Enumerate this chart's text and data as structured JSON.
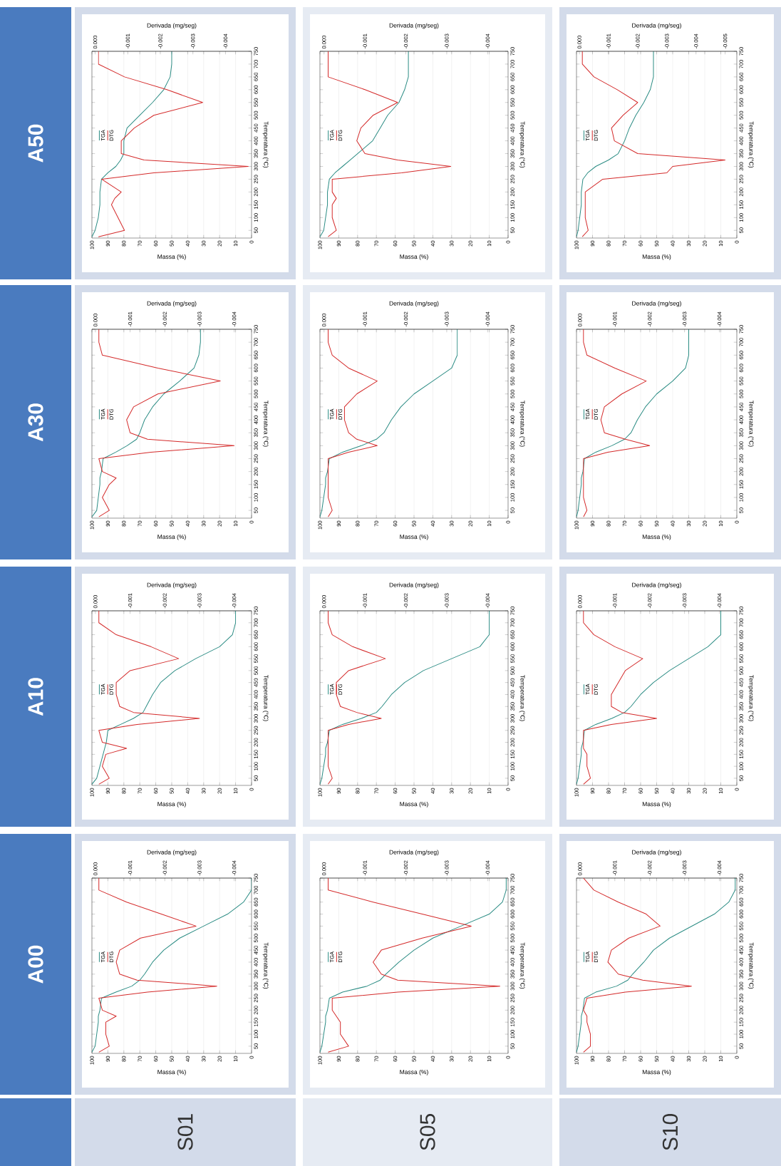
{
  "chart_data": [
    {
      "type": "other",
      "annotations": [
        "A00",
        "A10",
        "A30",
        "A50",
        "S01",
        "S05",
        "S10"
      ]
    },
    {
      "type": "line",
      "xlabel": "Massa (%)",
      "x2label": "Derivada (mg/seg)",
      "ylabel": "Temperatura (°C)",
      "xlim": [
        100,
        0
      ],
      "xticks": [
        0,
        10,
        20,
        30,
        40,
        50,
        60,
        70,
        80,
        90,
        100
      ],
      "x2lim": [
        0.0001,
        -0.0045
      ],
      "x2ticks": [
        {
          "value": 0,
          "label": "0.000"
        },
        {
          "value": -0.001,
          "label": "-0.001"
        },
        {
          "value": -0.002,
          "label": "-0.002"
        },
        {
          "value": -0.003,
          "label": "-0.003"
        },
        {
          "value": -0.004,
          "label": "-0.004"
        }
      ],
      "ylim": [
        20,
        750
      ],
      "yticks": [
        50,
        100,
        150,
        200,
        250,
        300,
        350,
        400,
        450,
        500,
        550,
        600,
        650,
        700,
        750
      ],
      "grid": "x",
      "legend": "left",
      "series": [
        {
          "name": "TGA",
          "color": "#2b8c84",
          "x": [
            100,
            98,
            97,
            96,
            96,
            95,
            94,
            85,
            75,
            70,
            67,
            62,
            55,
            45,
            30,
            15,
            5,
            0,
            0
          ],
          "values": [
            25,
            50,
            100,
            150,
            175,
            200,
            250,
            275,
            300,
            325,
            350,
            400,
            450,
            500,
            550,
            600,
            650,
            700,
            750
          ]
        },
        {
          "name": "DTG",
          "color": "#d42a2a",
          "axis": "x2",
          "x": [
            -0.0001,
            -0.0004,
            -0.0003,
            -0.0003,
            -0.0006,
            -0.0002,
            -0.0001,
            -0.0015,
            -0.0035,
            -0.0012,
            -0.0007,
            -0.0006,
            -0.0007,
            -0.0013,
            -0.0029,
            -0.0019,
            -0.0009,
            -0.0001,
            -0.0001
          ],
          "values": [
            25,
            50,
            100,
            150,
            175,
            200,
            250,
            275,
            300,
            325,
            350,
            400,
            450,
            500,
            550,
            600,
            650,
            700,
            750
          ]
        }
      ]
    },
    {
      "type": "line",
      "xlabel": "Massa (%)",
      "x2label": "Derivada (mg/seg)",
      "ylabel": "Temperatura (°C)",
      "xlim": [
        100,
        0
      ],
      "xticks": [
        0,
        10,
        20,
        30,
        40,
        50,
        60,
        70,
        80,
        90,
        100
      ],
      "x2lim": [
        0.0001,
        -0.0045
      ],
      "x2ticks": [
        {
          "value": 0,
          "label": "0.000"
        },
        {
          "value": -0.001,
          "label": "-0.001"
        },
        {
          "value": -0.002,
          "label": "-0.002"
        },
        {
          "value": -0.003,
          "label": "-0.003"
        },
        {
          "value": -0.004,
          "label": "-0.004"
        }
      ],
      "ylim": [
        20,
        750
      ],
      "yticks": [
        50,
        100,
        150,
        200,
        250,
        300,
        350,
        400,
        450,
        500,
        550,
        600,
        650,
        700,
        750
      ],
      "grid": "x",
      "legend": "left",
      "series": [
        {
          "name": "TGA",
          "color": "#2b8c84",
          "x": [
            100,
            97,
            95,
            93,
            92,
            91,
            90,
            82,
            74,
            68,
            66,
            62,
            57,
            48,
            35,
            20,
            12,
            10,
            10
          ],
          "values": [
            25,
            50,
            100,
            150,
            175,
            200,
            250,
            275,
            300,
            325,
            350,
            400,
            450,
            500,
            550,
            600,
            650,
            700,
            750
          ]
        },
        {
          "name": "DTG",
          "color": "#d42a2a",
          "axis": "x2",
          "x": [
            -0.0001,
            -0.0004,
            -0.0002,
            -0.0003,
            -0.0009,
            -0.0002,
            -0.0001,
            -0.0012,
            -0.003,
            -0.0011,
            -0.0007,
            -0.0006,
            -0.0006,
            -0.001,
            -0.0024,
            -0.0016,
            -0.0006,
            -0.0001,
            -0.0001
          ],
          "values": [
            25,
            50,
            100,
            150,
            175,
            200,
            250,
            275,
            300,
            325,
            350,
            400,
            450,
            500,
            550,
            600,
            650,
            700,
            750
          ]
        }
      ]
    },
    {
      "type": "line",
      "xlabel": "Massa (%)",
      "x2label": "Derivada (mg/seg)",
      "ylabel": "Temperatura (°C)",
      "xlim": [
        100,
        0
      ],
      "xticks": [
        0,
        10,
        20,
        30,
        40,
        50,
        60,
        70,
        80,
        90,
        100
      ],
      "x2lim": [
        0.0001,
        -0.0045
      ],
      "x2ticks": [
        {
          "value": 0,
          "label": "0.000"
        },
        {
          "value": -0.001,
          "label": "-0.001"
        },
        {
          "value": -0.002,
          "label": "-0.002"
        },
        {
          "value": -0.003,
          "label": "-0.003"
        },
        {
          "value": -0.004,
          "label": "-0.004"
        }
      ],
      "ylim": [
        20,
        750
      ],
      "yticks": [
        50,
        100,
        150,
        200,
        250,
        300,
        350,
        400,
        450,
        500,
        550,
        600,
        650,
        700,
        750
      ],
      "grid": "x",
      "legend": "left",
      "series": [
        {
          "name": "TGA",
          "color": "#2b8c84",
          "x": [
            100,
            97,
            96,
            95,
            95,
            94,
            93,
            85,
            78,
            72,
            70,
            67,
            62,
            55,
            45,
            36,
            33,
            32,
            32
          ],
          "values": [
            25,
            50,
            100,
            150,
            175,
            200,
            250,
            275,
            300,
            325,
            350,
            400,
            450,
            500,
            550,
            600,
            650,
            700,
            750
          ]
        },
        {
          "name": "DTG",
          "color": "#d42a2a",
          "axis": "x2",
          "x": [
            -0.0001,
            -0.0004,
            -0.0002,
            -0.0004,
            -0.0006,
            -0.0002,
            -0.0001,
            -0.0016,
            -0.004,
            -0.0015,
            -0.001,
            -0.0009,
            -0.0011,
            -0.0018,
            -0.0036,
            -0.0018,
            -0.0002,
            -0.0001,
            -0.0001
          ],
          "values": [
            25,
            50,
            100,
            150,
            175,
            200,
            250,
            275,
            300,
            325,
            350,
            400,
            450,
            500,
            550,
            600,
            650,
            700,
            750
          ]
        }
      ]
    },
    {
      "type": "line",
      "xlabel": "Massa (%)",
      "x2label": "Derivada (mg/seg)",
      "ylabel": "Temperatura (°C)",
      "xlim": [
        100,
        0
      ],
      "xticks": [
        0,
        10,
        20,
        30,
        40,
        50,
        60,
        70,
        80,
        90,
        100
      ],
      "x2lim": [
        0.0001,
        -0.0048
      ],
      "x2ticks": [
        {
          "value": 0,
          "label": "0.000"
        },
        {
          "value": -0.001,
          "label": "-0.001"
        },
        {
          "value": -0.002,
          "label": "-0.002"
        },
        {
          "value": -0.003,
          "label": "-0.003"
        },
        {
          "value": -0.004,
          "label": "-0.004"
        }
      ],
      "ylim": [
        20,
        750
      ],
      "yticks": [
        50,
        100,
        150,
        200,
        250,
        300,
        350,
        400,
        450,
        500,
        550,
        600,
        650,
        700,
        750
      ],
      "grid": "x",
      "legend": "left",
      "series": [
        {
          "name": "TGA",
          "color": "#2b8c84",
          "x": [
            100,
            98,
            96,
            95,
            95,
            94,
            90,
            85,
            82,
            80,
            80,
            78,
            70,
            62,
            55,
            51,
            50,
            50
          ],
          "values": [
            25,
            50,
            100,
            150,
            200,
            250,
            275,
            300,
            325,
            350,
            400,
            450,
            500,
            550,
            600,
            650,
            700,
            750
          ]
        },
        {
          "name": "DTG",
          "color": "#d42a2a",
          "axis": "x2",
          "x": [
            -0.0001,
            -0.0009,
            -0.0007,
            -0.0005,
            -0.0006,
            -0.0008,
            -0.0002,
            -0.0018,
            -0.0047,
            -0.0015,
            -0.0008,
            -0.0008,
            -0.0012,
            -0.0018,
            -0.0033,
            -0.0022,
            -0.0009,
            -0.0001,
            -0.0001
          ],
          "values": [
            25,
            50,
            100,
            150,
            175,
            200,
            250,
            275,
            300,
            325,
            350,
            400,
            450,
            500,
            550,
            600,
            650,
            700,
            750
          ]
        }
      ]
    },
    {
      "type": "line",
      "xlabel": "Massa (%)",
      "x2label": "Derivada (mg/seg)",
      "ylabel": "Temperatura (°C)",
      "xlim": [
        100,
        0
      ],
      "xticks": [
        0,
        10,
        20,
        30,
        40,
        50,
        60,
        70,
        80,
        90,
        100
      ],
      "x2lim": [
        0.0001,
        -0.0045
      ],
      "x2ticks": [
        {
          "value": 0,
          "label": "0.000"
        },
        {
          "value": -0.001,
          "label": "-0.001"
        },
        {
          "value": -0.002,
          "label": "-0.002"
        },
        {
          "value": -0.003,
          "label": "-0.003"
        },
        {
          "value": -0.004,
          "label": "-0.004"
        }
      ],
      "ylim": [
        20,
        750
      ],
      "yticks": [
        50,
        100,
        150,
        200,
        250,
        300,
        350,
        400,
        450,
        500,
        550,
        600,
        650,
        700,
        750
      ],
      "grid": "x",
      "legend": "left",
      "series": [
        {
          "name": "TGA",
          "color": "#2b8c84",
          "x": [
            100,
            99,
            98,
            97,
            97,
            96,
            95,
            88,
            75,
            68,
            65,
            58,
            50,
            40,
            25,
            10,
            3,
            1,
            1
          ],
          "values": [
            25,
            50,
            100,
            150,
            175,
            200,
            250,
            275,
            300,
            325,
            350,
            400,
            450,
            500,
            550,
            600,
            650,
            700,
            750
          ]
        },
        {
          "name": "DTG",
          "color": "#d42a2a",
          "axis": "x2",
          "x": [
            -0.0001,
            -0.0006,
            -0.0004,
            -0.0004,
            -0.0003,
            -0.0002,
            -0.0002,
            -0.0018,
            -0.0043,
            -0.0018,
            -0.0014,
            -0.0012,
            -0.0014,
            -0.0024,
            -0.0036,
            -0.0024,
            -0.0012,
            -0.0001,
            -0.0001
          ],
          "values": [
            25,
            50,
            100,
            150,
            175,
            200,
            250,
            275,
            300,
            325,
            350,
            400,
            450,
            500,
            550,
            600,
            650,
            700,
            750
          ]
        }
      ]
    },
    {
      "type": "line",
      "xlabel": "Massa (%)",
      "x2label": "Derivada (mg/seg)",
      "ylabel": "Temperatura (°C)",
      "xlim": [
        100,
        0
      ],
      "xticks": [
        0,
        10,
        20,
        30,
        40,
        50,
        60,
        70,
        80,
        90,
        100
      ],
      "x2lim": [
        0.0001,
        -0.0045
      ],
      "x2ticks": [
        {
          "value": 0,
          "label": "0.000"
        },
        {
          "value": -0.001,
          "label": "-0.001"
        },
        {
          "value": -0.002,
          "label": "-0.002"
        },
        {
          "value": -0.003,
          "label": "-0.003"
        },
        {
          "value": -0.004,
          "label": "-0.004"
        }
      ],
      "ylim": [
        20,
        750
      ],
      "yticks": [
        50,
        100,
        150,
        200,
        250,
        300,
        350,
        400,
        450,
        500,
        550,
        600,
        650,
        700,
        750
      ],
      "grid": "x",
      "legend": "left",
      "series": [
        {
          "name": "TGA",
          "color": "#2b8c84",
          "x": [
            100,
            99,
            98,
            97,
            97,
            96,
            95,
            88,
            78,
            70,
            67,
            62,
            55,
            45,
            30,
            15,
            10,
            10
          ],
          "values": [
            25,
            50,
            100,
            150,
            175,
            200,
            250,
            275,
            300,
            325,
            350,
            400,
            450,
            500,
            550,
            600,
            650,
            750
          ]
        },
        {
          "name": "DTG",
          "color": "#d42a2a",
          "axis": "x2",
          "x": [
            -0.0001,
            -0.0002,
            -0.0001,
            -0.0001,
            -0.0001,
            -0.0001,
            -0.0001,
            -0.0006,
            -0.0014,
            -0.0008,
            -0.0004,
            -0.0003,
            -0.0003,
            -0.0006,
            -0.0015,
            -0.0007,
            -0.0002,
            -0.0001,
            -0.0001
          ],
          "values": [
            25,
            50,
            100,
            150,
            175,
            200,
            250,
            275,
            300,
            325,
            350,
            400,
            450,
            500,
            550,
            600,
            650,
            700,
            750
          ]
        }
      ]
    },
    {
      "type": "line",
      "xlabel": "Massa (%)",
      "x2label": "Derivada (mg/seg)",
      "ylabel": "Temperatura (°C)",
      "xlim": [
        100,
        0
      ],
      "xticks": [
        0,
        10,
        20,
        30,
        40,
        50,
        60,
        70,
        80,
        90,
        100
      ],
      "x2lim": [
        0.0001,
        -0.0045
      ],
      "x2ticks": [
        {
          "value": 0,
          "label": "0.000"
        },
        {
          "value": -0.001,
          "label": "-0.001"
        },
        {
          "value": -0.002,
          "label": "-0.002"
        },
        {
          "value": -0.003,
          "label": "-0.003"
        },
        {
          "value": -0.004,
          "label": "-0.004"
        }
      ],
      "ylim": [
        20,
        750
      ],
      "yticks": [
        50,
        100,
        150,
        200,
        250,
        300,
        350,
        400,
        450,
        500,
        550,
        600,
        650,
        700,
        750
      ],
      "grid": "x",
      "legend": "left",
      "series": [
        {
          "name": "TGA",
          "color": "#2b8c84",
          "x": [
            100,
            99,
            98,
            97,
            97,
            96,
            95,
            88,
            78,
            70,
            66,
            62,
            57,
            50,
            40,
            30,
            27,
            27
          ],
          "values": [
            25,
            50,
            100,
            150,
            175,
            200,
            250,
            275,
            300,
            325,
            350,
            400,
            450,
            500,
            550,
            600,
            650,
            750
          ]
        },
        {
          "name": "DTG",
          "color": "#d42a2a",
          "axis": "x2",
          "x": [
            -0.0001,
            -0.0002,
            -0.0001,
            -0.0001,
            -0.0001,
            -0.0001,
            -0.0001,
            -0.0006,
            -0.0013,
            -0.0008,
            -0.0006,
            -0.0005,
            -0.0005,
            -0.0008,
            -0.0013,
            -0.0006,
            -0.0002,
            -0.0001,
            -0.0001
          ],
          "values": [
            25,
            50,
            100,
            150,
            175,
            200,
            250,
            275,
            300,
            325,
            350,
            400,
            450,
            500,
            550,
            600,
            650,
            700,
            750
          ]
        }
      ]
    },
    {
      "type": "line",
      "xlabel": "Massa (%)",
      "x2label": "Derivada (mg/seg)",
      "ylabel": "Temperatura (°C)",
      "xlim": [
        100,
        0
      ],
      "xticks": [
        0,
        10,
        20,
        30,
        40,
        50,
        60,
        70,
        80,
        90,
        100
      ],
      "x2lim": [
        0.0001,
        -0.0045
      ],
      "x2ticks": [
        {
          "value": 0,
          "label": "0.000"
        },
        {
          "value": -0.001,
          "label": "-0.001"
        },
        {
          "value": -0.002,
          "label": "-0.002"
        },
        {
          "value": -0.003,
          "label": "-0.003"
        },
        {
          "value": -0.004,
          "label": "-0.004"
        }
      ],
      "ylim": [
        20,
        750
      ],
      "yticks": [
        50,
        100,
        150,
        200,
        250,
        300,
        350,
        400,
        450,
        500,
        550,
        600,
        650,
        700,
        750
      ],
      "grid": "x",
      "legend": "left",
      "series": [
        {
          "name": "TGA",
          "color": "#2b8c84",
          "x": [
            100,
            98,
            97,
            96,
            96,
            96,
            95,
            92,
            88,
            84,
            80,
            72,
            68,
            64,
            58,
            55,
            53,
            53,
            53
          ],
          "values": [
            25,
            50,
            100,
            150,
            175,
            200,
            250,
            275,
            300,
            325,
            350,
            400,
            450,
            500,
            550,
            600,
            650,
            700,
            750
          ]
        },
        {
          "name": "DTG",
          "color": "#d42a2a",
          "axis": "x2",
          "x": [
            -0.0001,
            -0.0003,
            -0.0002,
            -0.0002,
            -0.0003,
            -0.0002,
            -0.0002,
            -0.0019,
            -0.0031,
            -0.0018,
            -0.001,
            -0.0008,
            -0.0009,
            -0.0012,
            -0.0018,
            -0.001,
            -0.0001,
            -0.0001
          ],
          "values": [
            25,
            50,
            100,
            150,
            175,
            200,
            250,
            275,
            300,
            325,
            350,
            400,
            450,
            500,
            550,
            600,
            650,
            750
          ]
        }
      ]
    },
    {
      "type": "line",
      "xlabel": "Massa (%)",
      "x2label": "Derivada (mg/seg)",
      "ylabel": "Temperatura (°C)",
      "xlim": [
        100,
        0
      ],
      "xticks": [
        0,
        10,
        20,
        30,
        40,
        50,
        60,
        70,
        80,
        90,
        100
      ],
      "x2lim": [
        0.0001,
        -0.0045
      ],
      "x2ticks": [
        {
          "value": 0,
          "label": "0.000"
        },
        {
          "value": -0.001,
          "label": "-0.001"
        },
        {
          "value": -0.002,
          "label": "-0.002"
        },
        {
          "value": -0.003,
          "label": "-0.003"
        },
        {
          "value": -0.004,
          "label": "-0.004"
        }
      ],
      "ylim": [
        20,
        750
      ],
      "yticks": [
        50,
        100,
        150,
        200,
        250,
        300,
        350,
        400,
        450,
        500,
        550,
        600,
        650,
        700,
        750
      ],
      "grid": "x",
      "legend": "left",
      "series": [
        {
          "name": "TGA",
          "color": "#2b8c84",
          "x": [
            100,
            99,
            98,
            97,
            97,
            96,
            95,
            88,
            75,
            68,
            65,
            58,
            52,
            42,
            28,
            14,
            5,
            1,
            1
          ],
          "values": [
            25,
            50,
            100,
            150,
            175,
            200,
            250,
            275,
            300,
            325,
            350,
            400,
            450,
            500,
            550,
            600,
            650,
            700,
            750
          ]
        },
        {
          "name": "DTG",
          "color": "#d42a2a",
          "axis": "x2",
          "x": [
            -0.0001,
            -0.0003,
            -0.0003,
            -0.0002,
            -0.0002,
            -0.0001,
            -0.0002,
            -0.0013,
            -0.0032,
            -0.0018,
            -0.0011,
            -0.0008,
            -0.0009,
            -0.0014,
            -0.0023,
            -0.0019,
            -0.0011,
            -0.0004,
            -0.0001
          ],
          "values": [
            25,
            50,
            100,
            150,
            175,
            200,
            250,
            275,
            300,
            325,
            350,
            400,
            450,
            500,
            550,
            600,
            650,
            700,
            750
          ]
        }
      ]
    },
    {
      "type": "line",
      "xlabel": "Massa (%)",
      "x2label": "Derivada (mg/seg)",
      "ylabel": "Temperatura (°C)",
      "xlim": [
        100,
        0
      ],
      "xticks": [
        0,
        10,
        20,
        30,
        40,
        50,
        60,
        70,
        80,
        90,
        100
      ],
      "x2lim": [
        0.0001,
        -0.0045
      ],
      "x2ticks": [
        {
          "value": 0,
          "label": "0.000"
        },
        {
          "value": -0.001,
          "label": "-0.001"
        },
        {
          "value": -0.002,
          "label": "-0.002"
        },
        {
          "value": -0.003,
          "label": "-0.003"
        },
        {
          "value": -0.004,
          "label": "-0.004"
        }
      ],
      "ylim": [
        20,
        750
      ],
      "yticks": [
        50,
        100,
        150,
        200,
        250,
        300,
        350,
        400,
        450,
        500,
        550,
        600,
        650,
        700,
        750
      ],
      "grid": "x",
      "legend": "left",
      "series": [
        {
          "name": "TGA",
          "color": "#2b8c84",
          "x": [
            100,
            99,
            98,
            97,
            97,
            96,
            95,
            88,
            78,
            70,
            66,
            60,
            52,
            42,
            30,
            18,
            10,
            10
          ],
          "values": [
            25,
            50,
            100,
            150,
            175,
            200,
            250,
            275,
            300,
            325,
            350,
            400,
            450,
            500,
            550,
            600,
            650,
            750
          ]
        },
        {
          "name": "DTG",
          "color": "#d42a2a",
          "axis": "x2",
          "x": [
            -0.0001,
            -0.0003,
            -0.0002,
            -0.0002,
            -0.0001,
            -0.0001,
            -0.0009,
            -0.0022,
            -0.0012,
            -0.0009,
            -0.0009,
            -0.0011,
            -0.0013,
            -0.0018,
            -0.001,
            -0.0004,
            -0.0001,
            -0.0001
          ],
          "values": [
            25,
            50,
            100,
            150,
            175,
            250,
            275,
            300,
            325,
            350,
            400,
            450,
            500,
            550,
            600,
            650,
            700,
            750
          ]
        }
      ]
    },
    {
      "type": "line",
      "xlabel": "Massa (%)",
      "x2label": "Derivada (mg/seg)",
      "ylabel": "Temperatura (°C)",
      "xlim": [
        100,
        0
      ],
      "xticks": [
        0,
        10,
        20,
        30,
        40,
        50,
        60,
        70,
        80,
        90,
        100
      ],
      "x2lim": [
        0.0001,
        -0.0045
      ],
      "x2ticks": [
        {
          "value": 0,
          "label": "0.000"
        },
        {
          "value": -0.001,
          "label": "-0.001"
        },
        {
          "value": -0.002,
          "label": "-0.002"
        },
        {
          "value": -0.003,
          "label": "-0.003"
        },
        {
          "value": -0.004,
          "label": "-0.004"
        }
      ],
      "ylim": [
        20,
        750
      ],
      "yticks": [
        50,
        100,
        150,
        200,
        250,
        300,
        350,
        400,
        450,
        500,
        550,
        600,
        650,
        700,
        750
      ],
      "grid": "x",
      "legend": "left",
      "series": [
        {
          "name": "TGA",
          "color": "#2b8c84",
          "x": [
            100,
            99,
            98,
            97,
            97,
            96,
            95,
            88,
            78,
            70,
            66,
            62,
            57,
            50,
            40,
            32,
            30,
            30
          ],
          "values": [
            25,
            50,
            100,
            150,
            175,
            200,
            250,
            275,
            300,
            325,
            350,
            400,
            450,
            500,
            550,
            600,
            650,
            750
          ]
        },
        {
          "name": "DTG",
          "color": "#d42a2a",
          "axis": "x2",
          "x": [
            -0.0001,
            -0.0002,
            -0.0001,
            -0.0001,
            -0.0001,
            -0.0001,
            -0.0001,
            -0.0008,
            -0.002,
            -0.0013,
            -0.0007,
            -0.0006,
            -0.0007,
            -0.0012,
            -0.0019,
            -0.001,
            -0.0002,
            -0.0001,
            -0.0001
          ],
          "values": [
            25,
            50,
            100,
            150,
            175,
            200,
            250,
            275,
            300,
            325,
            350,
            400,
            450,
            500,
            550,
            600,
            650,
            700,
            750
          ]
        }
      ]
    },
    {
      "type": "line",
      "xlabel": "Massa (%)",
      "x2label": "Derivada (mg/seg)",
      "ylabel": "Temperatura (°C)",
      "xlim": [
        100,
        0
      ],
      "xticks": [
        0,
        10,
        20,
        30,
        40,
        50,
        60,
        70,
        80,
        90,
        100
      ],
      "x2lim": [
        0.0001,
        -0.0054
      ],
      "x2ticks": [
        {
          "value": 0,
          "label": "0.000"
        },
        {
          "value": -0.001,
          "label": "-0.001"
        },
        {
          "value": -0.002,
          "label": "-0.002"
        },
        {
          "value": -0.003,
          "label": "-0.003"
        },
        {
          "value": -0.004,
          "label": "-0.004"
        },
        {
          "value": -0.005,
          "label": "-0.005"
        }
      ],
      "ylim": [
        20,
        750
      ],
      "yticks": [
        50,
        100,
        150,
        200,
        250,
        300,
        350,
        400,
        450,
        500,
        550,
        600,
        650,
        700,
        750
      ],
      "grid": "x",
      "legend": "left",
      "series": [
        {
          "name": "TGA",
          "color": "#2b8c84",
          "x": [
            100,
            99,
            98,
            97,
            97,
            97,
            96,
            93,
            88,
            80,
            74,
            70,
            67,
            63,
            58,
            54,
            52,
            52,
            52
          ],
          "values": [
            25,
            50,
            100,
            150,
            175,
            200,
            250,
            275,
            300,
            325,
            350,
            400,
            450,
            500,
            550,
            600,
            650,
            700,
            750
          ]
        },
        {
          "name": "DTG",
          "color": "#d42a2a",
          "axis": "x2",
          "x": [
            -0.0001,
            -0.0003,
            -0.0002,
            -0.0002,
            -0.0008,
            -0.003,
            -0.0032,
            -0.005,
            -0.002,
            -0.0012,
            -0.0011,
            -0.0015,
            -0.002,
            -0.0013,
            -0.0005,
            -0.0001,
            -0.0001
          ],
          "values": [
            25,
            50,
            100,
            200,
            250,
            275,
            300,
            325,
            350,
            400,
            450,
            500,
            550,
            600,
            650,
            700,
            750
          ]
        }
      ]
    }
  ]
}
